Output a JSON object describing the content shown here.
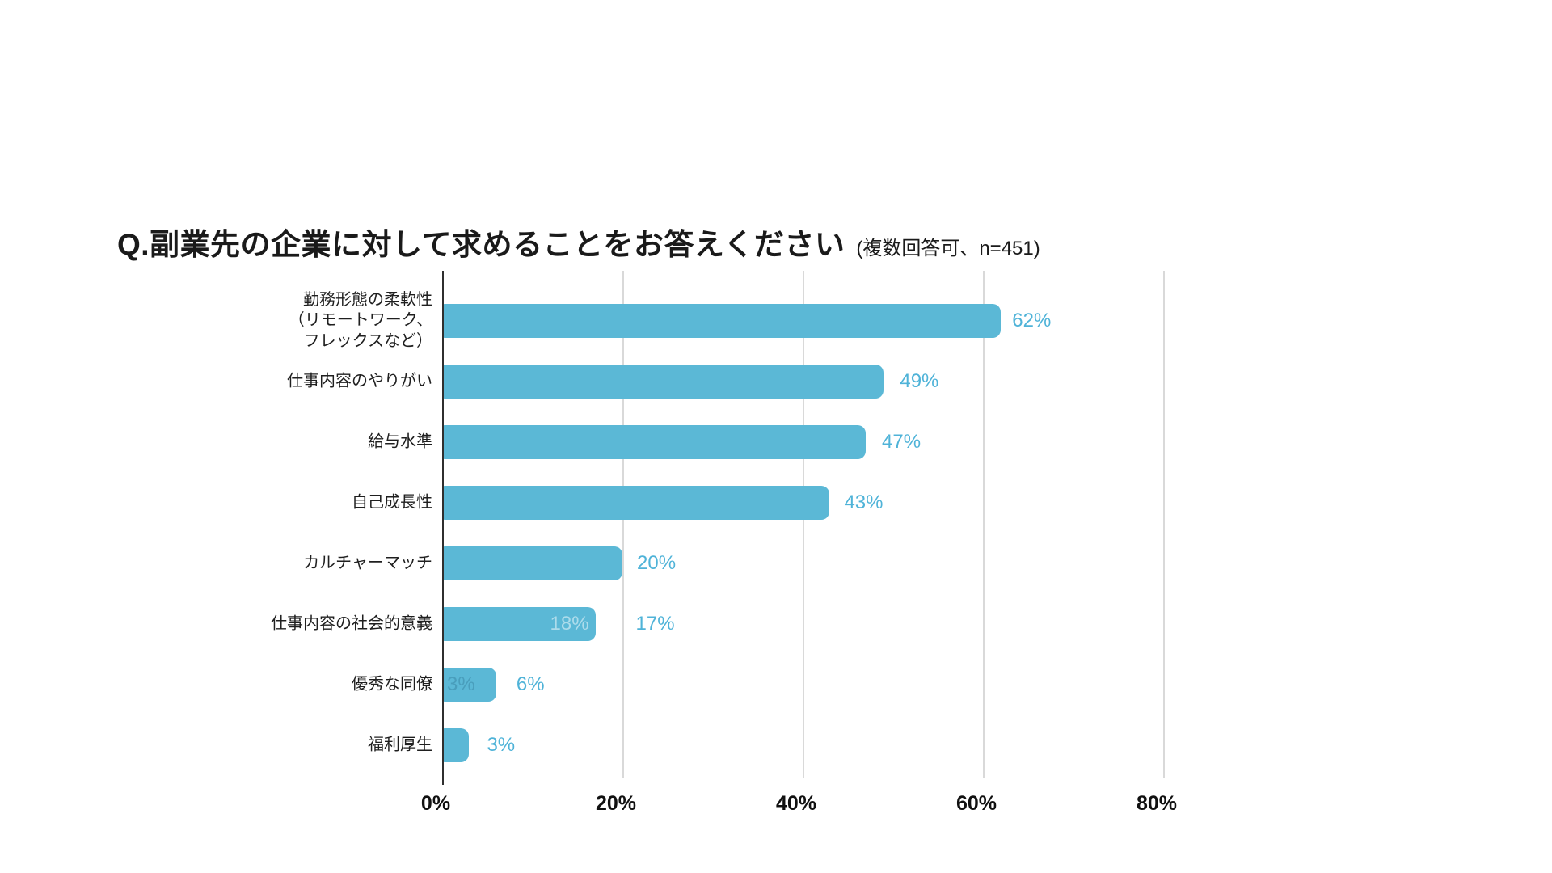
{
  "title": {
    "main": "Q.副業先の企業に対して求めることをお答えください",
    "note": "(複数回答可、n=451)"
  },
  "chart_data": {
    "type": "bar",
    "orientation": "horizontal",
    "title": "Q.副業先の企業に対して求めることをお答えください (複数回答可、n=451)",
    "sample_note": "複数回答可、n=451",
    "categories": [
      "勤務形態の柔軟性\n（リモートワーク、\nフレックスなど）",
      "仕事内容のやりがい",
      "給与水準",
      "自己成長性",
      "カルチャーマッチ",
      "仕事内容の社会的意義",
      "優秀な同僚",
      "福利厚生"
    ],
    "values": [
      62,
      49,
      47,
      43,
      20,
      17,
      6,
      3
    ],
    "value_labels": [
      "62%",
      "49%",
      "47%",
      "43%",
      "20%",
      "17%",
      "6%",
      "3%"
    ],
    "x_ticks": [
      {
        "pct": 0,
        "label": "0%"
      },
      {
        "pct": 20,
        "label": "20%"
      },
      {
        "pct": 40,
        "label": "40%"
      },
      {
        "pct": 60,
        "label": "60%"
      },
      {
        "pct": 80,
        "label": "80%"
      }
    ],
    "xlim": [
      0,
      82
    ],
    "grid": true,
    "legend": "none",
    "ghost_labels": [
      {
        "row_index": 5,
        "text": "18%",
        "style": "light"
      },
      {
        "row_index": 6,
        "text": "3%",
        "style": "dark"
      }
    ],
    "colors": {
      "bar": "#5bb8d6",
      "value_label": "#4fb3d8",
      "grid_line": "#d9d9d9",
      "axis_line": "#2f2f2f",
      "text": "#1a1a1a"
    }
  }
}
